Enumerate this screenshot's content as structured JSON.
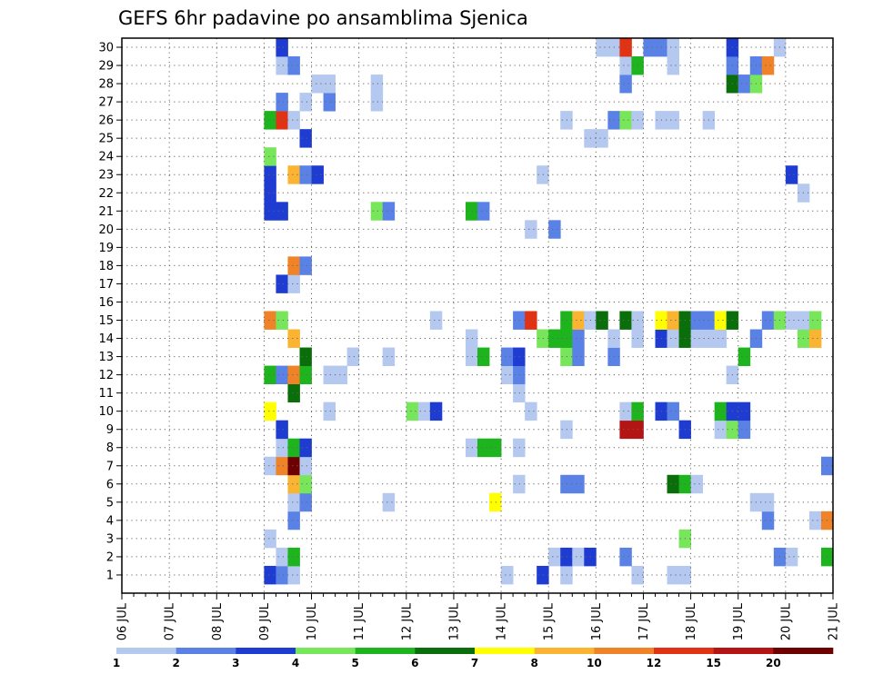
{
  "chart_data": {
    "type": "heatmap",
    "title": "GEFS 6hr padavine po ansamblima Sjenica",
    "xlabel": "",
    "ylabel": "",
    "x_tick_labels": [
      "06 JUL",
      "07 JUL",
      "08 JUL",
      "09 JUL",
      "10 JUL",
      "11 JUL",
      "12 JUL",
      "13 JUL",
      "14 JUL",
      "15 JUL",
      "16 JUL",
      "17 JUL",
      "18 JUL",
      "19 JUL",
      "20 JUL",
      "21 JUL"
    ],
    "y_tick_labels": [
      1,
      2,
      3,
      4,
      5,
      6,
      7,
      8,
      9,
      10,
      11,
      12,
      13,
      14,
      15,
      16,
      17,
      18,
      19,
      20,
      21,
      22,
      23,
      24,
      25,
      26,
      27,
      28,
      29,
      30
    ],
    "x_range_days": [
      0,
      15
    ],
    "y_range": [
      0,
      30.5
    ],
    "time_step_hours": 6,
    "grid": true,
    "colorbar": {
      "position": "bottom",
      "tick_labels": [
        "1",
        "2",
        "3",
        "4",
        "5",
        "6",
        "7",
        "8",
        "10",
        "12",
        "15",
        "20"
      ],
      "colors": [
        "#b4c8f0",
        "#5a82e6",
        "#1e3cd2",
        "#78e65a",
        "#1eb41e",
        "#0a6e0a",
        "#ffff00",
        "#fab432",
        "#f08228",
        "#e13214",
        "#b41414",
        "#6e0000"
      ]
    },
    "cells_note": "each cell: [day offset from 06 JUL, member (y), color class index 0-11]",
    "cells": [
      [
        3.0,
        1,
        2
      ],
      [
        3.25,
        1,
        1
      ],
      [
        3.5,
        1,
        0
      ],
      [
        8.0,
        1,
        0
      ],
      [
        8.75,
        1,
        2
      ],
      [
        9.25,
        1,
        0
      ],
      [
        10.75,
        1,
        0
      ],
      [
        11.5,
        1,
        0
      ],
      [
        11.75,
        1,
        0
      ],
      [
        3.25,
        2,
        0
      ],
      [
        3.5,
        2,
        4
      ],
      [
        9.0,
        2,
        0
      ],
      [
        9.25,
        2,
        2
      ],
      [
        9.5,
        2,
        0
      ],
      [
        9.75,
        2,
        2
      ],
      [
        10.5,
        2,
        1
      ],
      [
        13.75,
        2,
        1
      ],
      [
        14.0,
        2,
        0
      ],
      [
        14.75,
        2,
        4
      ],
      [
        3.0,
        3,
        0
      ],
      [
        11.75,
        3,
        3
      ],
      [
        3.5,
        4,
        1
      ],
      [
        13.5,
        4,
        1
      ],
      [
        14.5,
        4,
        0
      ],
      [
        14.75,
        4,
        8
      ],
      [
        3.5,
        5,
        0
      ],
      [
        3.75,
        5,
        1
      ],
      [
        5.5,
        5,
        0
      ],
      [
        7.75,
        5,
        6
      ],
      [
        13.25,
        5,
        0
      ],
      [
        13.5,
        5,
        0
      ],
      [
        3.5,
        6,
        7
      ],
      [
        3.75,
        6,
        3
      ],
      [
        8.25,
        6,
        0
      ],
      [
        9.25,
        6,
        1
      ],
      [
        9.5,
        6,
        1
      ],
      [
        11.5,
        6,
        5
      ],
      [
        11.75,
        6,
        4
      ],
      [
        12.0,
        6,
        0
      ],
      [
        3.0,
        7,
        0
      ],
      [
        3.25,
        7,
        8
      ],
      [
        3.5,
        7,
        11
      ],
      [
        3.75,
        7,
        0
      ],
      [
        14.75,
        7,
        1
      ],
      [
        3.25,
        8,
        0
      ],
      [
        3.5,
        8,
        4
      ],
      [
        3.75,
        8,
        2
      ],
      [
        7.25,
        8,
        0
      ],
      [
        7.5,
        8,
        4
      ],
      [
        7.75,
        8,
        4
      ],
      [
        8.25,
        8,
        0
      ],
      [
        3.25,
        9,
        2
      ],
      [
        9.25,
        9,
        0
      ],
      [
        10.5,
        9,
        10
      ],
      [
        10.75,
        9,
        10
      ],
      [
        11.75,
        9,
        2
      ],
      [
        12.5,
        9,
        0
      ],
      [
        12.75,
        9,
        3
      ],
      [
        13.0,
        9,
        1
      ],
      [
        3.0,
        10,
        6
      ],
      [
        4.25,
        10,
        0
      ],
      [
        6.0,
        10,
        3
      ],
      [
        6.25,
        10,
        0
      ],
      [
        6.5,
        10,
        2
      ],
      [
        8.5,
        10,
        0
      ],
      [
        10.5,
        10,
        0
      ],
      [
        10.75,
        10,
        4
      ],
      [
        11.25,
        10,
        2
      ],
      [
        11.5,
        10,
        1
      ],
      [
        12.5,
        10,
        4
      ],
      [
        12.75,
        10,
        2
      ],
      [
        13.0,
        10,
        2
      ],
      [
        3.5,
        11,
        5
      ],
      [
        8.25,
        11,
        0
      ],
      [
        3.0,
        12,
        4
      ],
      [
        3.25,
        12,
        1
      ],
      [
        3.5,
        12,
        8
      ],
      [
        3.75,
        12,
        4
      ],
      [
        4.25,
        12,
        0
      ],
      [
        4.5,
        12,
        0
      ],
      [
        8.0,
        12,
        0
      ],
      [
        8.25,
        12,
        1
      ],
      [
        12.75,
        12,
        0
      ],
      [
        3.75,
        13,
        5
      ],
      [
        4.75,
        13,
        0
      ],
      [
        5.5,
        13,
        0
      ],
      [
        7.25,
        13,
        0
      ],
      [
        7.5,
        13,
        4
      ],
      [
        8.0,
        13,
        1
      ],
      [
        8.25,
        13,
        2
      ],
      [
        9.25,
        13,
        3
      ],
      [
        9.5,
        13,
        1
      ],
      [
        10.25,
        13,
        1
      ],
      [
        13.0,
        13,
        4
      ],
      [
        3.5,
        14,
        7
      ],
      [
        7.25,
        14,
        0
      ],
      [
        8.75,
        14,
        3
      ],
      [
        9.0,
        14,
        4
      ],
      [
        9.25,
        14,
        4
      ],
      [
        9.5,
        14,
        1
      ],
      [
        10.25,
        14,
        0
      ],
      [
        10.75,
        14,
        0
      ],
      [
        11.25,
        14,
        2
      ],
      [
        11.5,
        14,
        0
      ],
      [
        11.75,
        14,
        5
      ],
      [
        12.0,
        14,
        0
      ],
      [
        12.25,
        14,
        0
      ],
      [
        12.5,
        14,
        0
      ],
      [
        13.25,
        14,
        1
      ],
      [
        14.25,
        14,
        3
      ],
      [
        14.5,
        14,
        7
      ],
      [
        3.0,
        15,
        8
      ],
      [
        3.25,
        15,
        3
      ],
      [
        6.5,
        15,
        0
      ],
      [
        8.25,
        15,
        1
      ],
      [
        8.5,
        15,
        9
      ],
      [
        9.25,
        15,
        4
      ],
      [
        9.5,
        15,
        7
      ],
      [
        9.75,
        15,
        0
      ],
      [
        10.0,
        15,
        5
      ],
      [
        10.5,
        15,
        5
      ],
      [
        10.75,
        15,
        0
      ],
      [
        11.25,
        15,
        6
      ],
      [
        11.5,
        15,
        7
      ],
      [
        11.75,
        15,
        5
      ],
      [
        12.0,
        15,
        1
      ],
      [
        12.25,
        15,
        1
      ],
      [
        12.5,
        15,
        6
      ],
      [
        12.75,
        15,
        5
      ],
      [
        13.5,
        15,
        1
      ],
      [
        13.75,
        15,
        3
      ],
      [
        14.0,
        15,
        0
      ],
      [
        14.25,
        15,
        0
      ],
      [
        14.5,
        15,
        3
      ],
      [
        3.25,
        17,
        2
      ],
      [
        3.5,
        17,
        0
      ],
      [
        3.5,
        18,
        8
      ],
      [
        3.75,
        18,
        1
      ],
      [
        8.5,
        20,
        0
      ],
      [
        9.0,
        20,
        1
      ],
      [
        3.0,
        21,
        2
      ],
      [
        3.25,
        21,
        2
      ],
      [
        5.25,
        21,
        3
      ],
      [
        5.5,
        21,
        1
      ],
      [
        7.25,
        21,
        4
      ],
      [
        7.5,
        21,
        1
      ],
      [
        3.0,
        22,
        2
      ],
      [
        14.25,
        22,
        0
      ],
      [
        3.0,
        23,
        2
      ],
      [
        3.5,
        23,
        7
      ],
      [
        3.75,
        23,
        1
      ],
      [
        4.0,
        23,
        2
      ],
      [
        8.75,
        23,
        0
      ],
      [
        14.0,
        23,
        2
      ],
      [
        3.0,
        24,
        3
      ],
      [
        3.75,
        25,
        2
      ],
      [
        9.75,
        25,
        0
      ],
      [
        10.0,
        25,
        0
      ],
      [
        3.0,
        26,
        4
      ],
      [
        3.25,
        26,
        9
      ],
      [
        3.5,
        26,
        0
      ],
      [
        9.25,
        26,
        0
      ],
      [
        10.25,
        26,
        1
      ],
      [
        10.5,
        26,
        3
      ],
      [
        10.75,
        26,
        0
      ],
      [
        11.25,
        26,
        0
      ],
      [
        11.5,
        26,
        0
      ],
      [
        12.25,
        26,
        0
      ],
      [
        3.25,
        27,
        1
      ],
      [
        3.75,
        27,
        0
      ],
      [
        4.25,
        27,
        1
      ],
      [
        5.25,
        27,
        0
      ],
      [
        4.0,
        28,
        0
      ],
      [
        4.25,
        28,
        0
      ],
      [
        5.25,
        28,
        0
      ],
      [
        10.5,
        28,
        1
      ],
      [
        12.75,
        28,
        5
      ],
      [
        13.0,
        28,
        1
      ],
      [
        13.25,
        28,
        3
      ],
      [
        3.25,
        29,
        0
      ],
      [
        3.5,
        29,
        1
      ],
      [
        10.5,
        29,
        0
      ],
      [
        10.75,
        29,
        4
      ],
      [
        11.5,
        29,
        0
      ],
      [
        12.75,
        29,
        1
      ],
      [
        13.25,
        29,
        1
      ],
      [
        13.5,
        29,
        8
      ],
      [
        3.25,
        30,
        2
      ],
      [
        10.0,
        30,
        0
      ],
      [
        10.25,
        30,
        0
      ],
      [
        10.5,
        30,
        9
      ],
      [
        11.0,
        30,
        1
      ],
      [
        11.25,
        30,
        1
      ],
      [
        11.5,
        30,
        0
      ],
      [
        12.75,
        30,
        2
      ],
      [
        13.75,
        30,
        0
      ]
    ]
  }
}
